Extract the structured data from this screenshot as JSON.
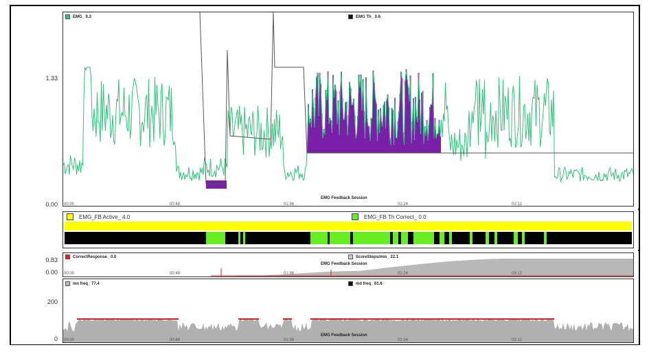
{
  "emg_panel": {
    "legend_left": "EMG_ 0.3",
    "legend_right": "EMG Th_ 0.6",
    "y_max_label": "1.33",
    "y_min_label": "0.00",
    "x_title": "EMG Feedback Session",
    "x_ticks": [
      "00:00",
      "00:48",
      "01:36",
      "02:24",
      "03:12"
    ],
    "colors": {
      "signal": "#2fc47a",
      "threshold": "#555555",
      "above": "#7a1fa8",
      "above_top": "#2a4fd0"
    }
  },
  "feedback_panel": {
    "legend_left": "EMG_FB Active_ 4.0",
    "legend_right": "EMG_FB Th Correct_ 0.0",
    "colors": {
      "active": "#ffff00",
      "correct": "#66ee22",
      "off": "#000000"
    }
  },
  "response_panel": {
    "legend_left": "CorrectResponse_ 0.0",
    "legend_right": "ScoreSteps/min_ 22.1",
    "y_max_label": "0.83",
    "y_min_label": "0.00",
    "x_title": "EMG Feedback Session",
    "x_ticks": [
      "00:00",
      "00:48",
      "01:36",
      "02:24",
      "03:12"
    ],
    "colors": {
      "score": "#b8b8b8",
      "response": "#dd2222"
    }
  },
  "freq_panel": {
    "legend_left": "mn freq_ 77.4",
    "legend_right": "md freq_ 61.6",
    "y_max_label": "200",
    "y_min_label": "0",
    "x_title": "EMG Feedback Session",
    "x_ticks": [
      "00:00",
      "00:48",
      "01:36",
      "02:24",
      "03:12"
    ],
    "colors": {
      "mean": "#b0b0b0",
      "median": "#d42020"
    }
  }
}
